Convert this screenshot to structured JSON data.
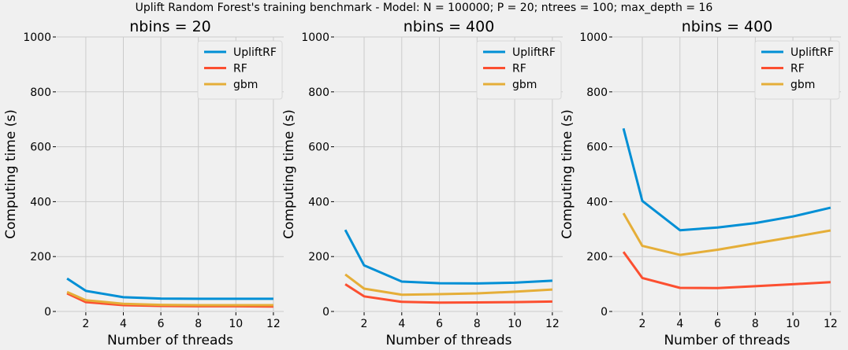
{
  "suptitle": "Uplift Random Forest's training benchmark - Model: N = 100000; P = 20; ntrees = 100; max_depth = 16",
  "colors": {
    "UpliftRF": "#008fd5",
    "RF": "#fc4f30",
    "gbm": "#e5ae38",
    "grid": "#cbcbcb",
    "background": "#f0f0f0"
  },
  "chart_data": [
    {
      "type": "line",
      "title": "nbins = 20",
      "xlabel": "Number of threads",
      "ylabel": "Computing time (s)",
      "x": [
        1,
        2,
        4,
        6,
        8,
        10,
        12
      ],
      "xticks": [
        2,
        4,
        6,
        8,
        10,
        12
      ],
      "yticks": [
        0,
        200,
        400,
        600,
        800,
        1000
      ],
      "xlim": [
        0.45,
        12.55
      ],
      "ylim": [
        0,
        1000
      ],
      "legend": "top-right",
      "grid": true,
      "series": [
        {
          "name": "UpliftRF",
          "values": [
            120,
            75,
            52,
            47,
            46,
            46,
            46
          ]
        },
        {
          "name": "RF",
          "values": [
            66,
            34,
            23,
            20,
            19,
            19,
            18
          ]
        },
        {
          "name": "gbm",
          "values": [
            71,
            41,
            28,
            24,
            23,
            23,
            23
          ]
        }
      ]
    },
    {
      "type": "line",
      "title": "nbins = 400",
      "xlabel": "Number of threads",
      "ylabel": "Computing time (s)",
      "x": [
        1,
        2,
        4,
        6,
        8,
        10,
        12
      ],
      "xticks": [
        2,
        4,
        6,
        8,
        10,
        12
      ],
      "yticks": [
        0,
        200,
        400,
        600,
        800,
        1000
      ],
      "xlim": [
        0.45,
        12.55
      ],
      "ylim": [
        0,
        1000
      ],
      "legend": "top-right",
      "grid": true,
      "series": [
        {
          "name": "UpliftRF",
          "values": [
            297,
            168,
            109,
            103,
            102,
            105,
            112
          ]
        },
        {
          "name": "RF",
          "values": [
            99,
            55,
            35,
            32,
            33,
            34,
            36
          ]
        },
        {
          "name": "gbm",
          "values": [
            135,
            83,
            61,
            63,
            66,
            72,
            80
          ]
        }
      ]
    },
    {
      "type": "line",
      "title": "nbins = 400",
      "xlabel": "Number of threads",
      "ylabel": "Computing time (s)",
      "x": [
        1,
        2,
        4,
        6,
        8,
        10,
        12
      ],
      "xticks": [
        2,
        4,
        6,
        8,
        10,
        12
      ],
      "yticks": [
        0,
        200,
        400,
        600,
        800,
        1000
      ],
      "xlim": [
        0.45,
        12.55
      ],
      "ylim": [
        0,
        1000
      ],
      "legend": "top-right",
      "grid": true,
      "series": [
        {
          "name": "UpliftRF",
          "values": [
            667,
            403,
            296,
            306,
            322,
            346,
            378
          ]
        },
        {
          "name": "RF",
          "values": [
            217,
            122,
            86,
            85,
            92,
            99,
            107
          ]
        },
        {
          "name": "gbm",
          "values": [
            358,
            239,
            206,
            225,
            248,
            271,
            295
          ]
        }
      ]
    }
  ]
}
